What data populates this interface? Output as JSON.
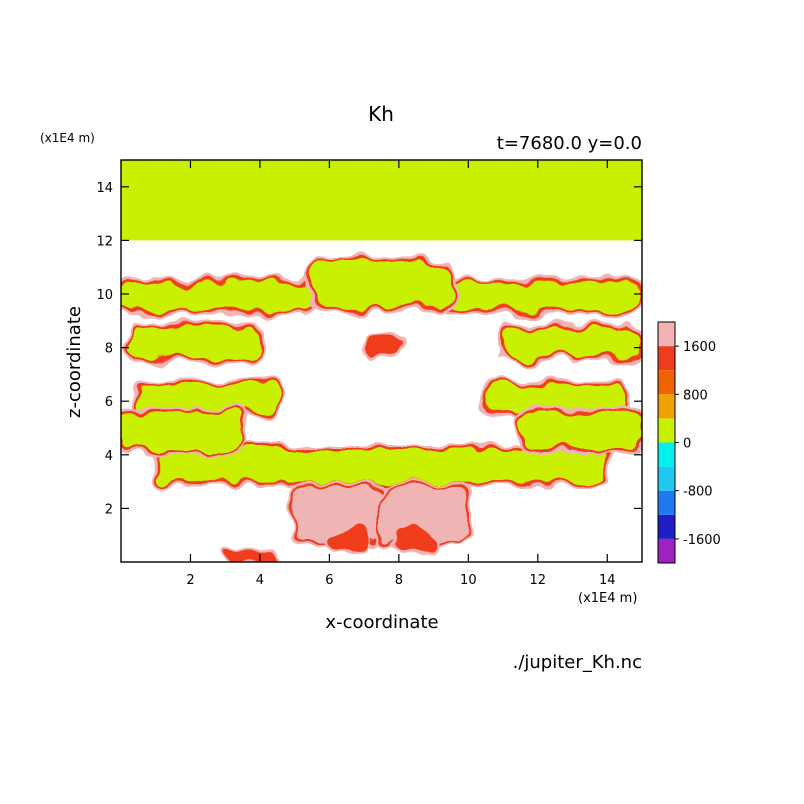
{
  "chart_data": {
    "type": "heatmap",
    "title": "Kh",
    "subtitle": "t=7680.0 y=0.0",
    "xlabel": "x-coordinate",
    "ylabel": "z-coordinate",
    "x_unit": "(x1E4 m)",
    "y_unit": "(x1E4 m)",
    "xlim": [
      0,
      15
    ],
    "ylim": [
      0,
      15
    ],
    "x_ticks": [
      2,
      4,
      6,
      8,
      10,
      12,
      14
    ],
    "y_ticks": [
      2,
      4,
      6,
      8,
      10,
      12,
      14
    ],
    "x_tick_labels": [
      "2",
      "4",
      "6",
      "8",
      "10",
      "12",
      "14"
    ],
    "y_tick_labels": [
      "2",
      "4",
      "6",
      "8",
      "10",
      "12",
      "14"
    ],
    "grid": false,
    "legend_position": "right",
    "colorbar": {
      "levels": [
        -2000,
        -1600,
        -1200,
        -800,
        -400,
        0,
        400,
        800,
        1200,
        1600,
        2000
      ],
      "colors": [
        "#a020c0",
        "#1e1ec8",
        "#1e78f0",
        "#1ec8f0",
        "#00f0f0",
        "#c8f000",
        "#f0a000",
        "#f06400",
        "#f03c1e",
        "#f0b4b4"
      ],
      "tick_values": [
        -1600,
        -800,
        0,
        800,
        1600
      ],
      "tick_labels": [
        "-1600",
        "-800",
        "0",
        "800",
        "1600"
      ]
    },
    "field": {
      "background": "#ffffff",
      "top_band": {
        "z_min": 12.0,
        "z_max": 15.0,
        "color": "#c8f000"
      },
      "regions": [
        {
          "level": "0-400",
          "color": "#c8f000",
          "x": [
            1.0,
            14.0
          ],
          "z": [
            3.0,
            4.2
          ]
        },
        {
          "level": "0-400",
          "color": "#c8f000",
          "x": [
            0.0,
            5.5
          ],
          "z": [
            9.4,
            10.4
          ]
        },
        {
          "level": "0-400",
          "color": "#c8f000",
          "x": [
            9.5,
            15.0
          ],
          "z": [
            9.4,
            10.4
          ]
        },
        {
          "level": "0-400",
          "color": "#c8f000",
          "x": [
            0.2,
            4.0
          ],
          "z": [
            7.6,
            8.8
          ]
        },
        {
          "level": "0-400",
          "color": "#c8f000",
          "x": [
            11.0,
            14.8
          ],
          "z": [
            7.6,
            8.8
          ]
        },
        {
          "level": "0-400",
          "color": "#c8f000",
          "x": [
            0.5,
            4.5
          ],
          "z": [
            5.6,
            6.6
          ]
        },
        {
          "level": "0-400",
          "color": "#c8f000",
          "x": [
            10.5,
            14.5
          ],
          "z": [
            5.6,
            6.6
          ]
        },
        {
          "level": "0-400",
          "color": "#c8f000",
          "x": [
            0.0,
            3.5
          ],
          "z": [
            4.2,
            5.6
          ]
        },
        {
          "level": "0-400",
          "color": "#c8f000",
          "x": [
            11.5,
            15.0
          ],
          "z": [
            4.2,
            5.6
          ]
        },
        {
          "level": "0-400",
          "color": "#c8f000",
          "x": [
            5.5,
            9.5
          ],
          "z": [
            9.5,
            11.2
          ]
        },
        {
          "level": "1600-2000",
          "color": "#f0b4b4",
          "x": [
            5.0,
            7.5
          ],
          "z": [
            0.8,
            2.8
          ]
        },
        {
          "level": "1600-2000",
          "color": "#f0b4b4",
          "x": [
            7.5,
            10.0
          ],
          "z": [
            0.8,
            2.8
          ]
        },
        {
          "level": "1200-1600",
          "color": "#f03c1e",
          "x": [
            6.0,
            7.0
          ],
          "z": [
            0.4,
            1.2
          ]
        },
        {
          "level": "1200-1600",
          "color": "#f03c1e",
          "x": [
            8.0,
            9.0
          ],
          "z": [
            0.4,
            1.2
          ]
        },
        {
          "level": "1200-1600",
          "color": "#f03c1e",
          "x": [
            7.0,
            8.0
          ],
          "z": [
            7.6,
            8.4
          ]
        },
        {
          "level": "1200-1600",
          "color": "#f03c1e",
          "x": [
            3.0,
            4.5
          ],
          "z": [
            0.05,
            0.35
          ]
        }
      ]
    }
  },
  "footer": {
    "x_unit_label": "(x1E4 m)",
    "filename": "./jupiter_Kh.nc"
  }
}
